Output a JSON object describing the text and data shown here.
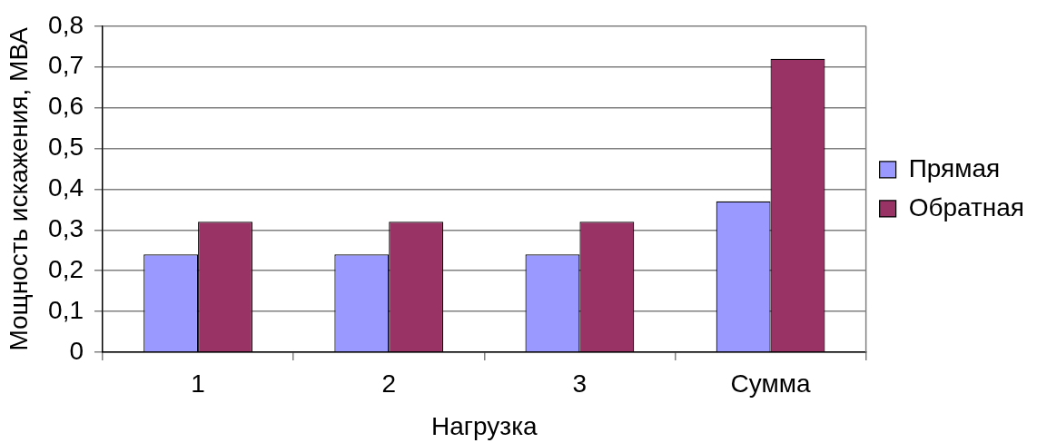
{
  "chart_data": {
    "type": "bar",
    "xlabel": "Нагрузка",
    "ylabel": "Мощность искажения, МВА",
    "categories": [
      "1",
      "2",
      "3",
      "Сумма"
    ],
    "series": [
      {
        "name": "Прямая",
        "color": "#9999ff",
        "values": [
          0.24,
          0.24,
          0.24,
          0.37
        ]
      },
      {
        "name": "Обратная",
        "color": "#993366",
        "values": [
          0.32,
          0.32,
          0.32,
          0.72
        ]
      }
    ],
    "ylim": [
      0,
      0.8
    ],
    "yticks": [
      0,
      {
        "value": 0.1,
        "label": "0,1"
      },
      {
        "value": 0.2,
        "label": "0,2"
      },
      {
        "value": 0.3,
        "label": "0,3"
      },
      {
        "value": 0.4,
        "label": "0,4"
      },
      {
        "value": 0.5,
        "label": "0,5"
      },
      {
        "value": 0.6,
        "label": "0,6"
      },
      {
        "value": 0.7,
        "label": "0,7"
      },
      {
        "value": 0.8,
        "label": "0,8"
      }
    ],
    "grid": "y",
    "legend": "right"
  }
}
